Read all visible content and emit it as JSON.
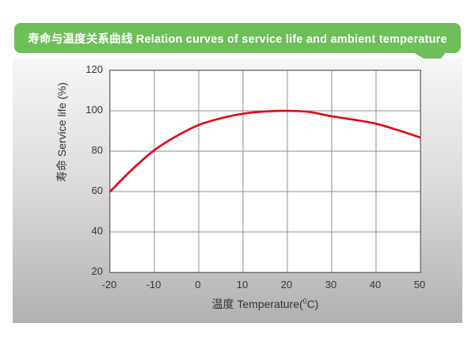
{
  "banner": {
    "title": "寿命与温度关系曲线 Relation curves of service life and ambient temperature",
    "color": "#6ebe5a",
    "text_color": "#ffffff"
  },
  "colors": {
    "panel_gradient_top": "#f7f6f6",
    "panel_gradient_bottom": "#b3b0b0",
    "plot_background": "#ffffff",
    "grid_line": "#8f8f8f",
    "plot_border": "#6b6b6b",
    "curve_red": "#e60012",
    "tick_text": "#333333"
  },
  "chart_data": {
    "type": "line",
    "title": "寿命与温度关系曲线 Relation curves of service life and ambient temperature",
    "xlabel": {
      "prefix": "温度 Temperature(",
      "sup": "0",
      "suffix": "C)"
    },
    "ylabel": "寿命 Service life (%)",
    "xlim": [
      -20,
      50
    ],
    "ylim": [
      20,
      120
    ],
    "x_ticks": [
      -20,
      -10,
      0,
      10,
      20,
      30,
      40,
      50
    ],
    "y_ticks": [
      120,
      100,
      80,
      60,
      40,
      20
    ],
    "grid": true,
    "legend": "none",
    "series": [
      {
        "name": "service-life-vs-temperature",
        "color": "#e60012",
        "points": [
          [
            -20,
            60
          ],
          [
            -15,
            71
          ],
          [
            -10,
            80.5
          ],
          [
            -5,
            87.5
          ],
          [
            0,
            93
          ],
          [
            5,
            96.3
          ],
          [
            10,
            98.6
          ],
          [
            15,
            99.7
          ],
          [
            20,
            100
          ],
          [
            25,
            99.4
          ],
          [
            30,
            97.3
          ],
          [
            35,
            95.6
          ],
          [
            40,
            93.6
          ],
          [
            45,
            90.4
          ],
          [
            50,
            86.8
          ]
        ]
      }
    ]
  }
}
